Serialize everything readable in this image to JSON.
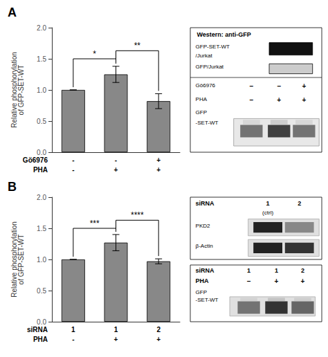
{
  "chart_data": [
    {
      "type": "bar",
      "title": "A",
      "ylabel": "Relative phosphorylation\nof GFP-SET-WT",
      "categories": [
        null,
        null,
        null
      ],
      "values": [
        1.0,
        1.25,
        0.82
      ],
      "errors": [
        0.0,
        0.13,
        0.12
      ],
      "color": "#888888",
      "ylim": [
        0,
        2.0
      ],
      "yticks": [
        {
          "value": 0.0,
          "label": "0.0"
        },
        {
          "value": 0.5,
          "label": "0.5"
        },
        {
          "value": 1.0,
          "label": "1.0"
        },
        {
          "value": 1.5,
          "label": "1.5"
        },
        {
          "value": 2.0,
          "label": "2.0"
        }
      ],
      "grid": false,
      "tick_labels": "y",
      "annotations": {
        "rows": [
          {
            "name": "Gö6976",
            "labels": [
              "-",
              "-",
              "+"
            ]
          },
          {
            "name": "PHA",
            "labels": [
              "-",
              "+",
              "+"
            ]
          }
        ],
        "significance": [
          {
            "between": [
              0,
              1
            ],
            "y": 1.5,
            "label": "*"
          },
          {
            "between": [
              1,
              2
            ],
            "y": 1.63,
            "label": "**"
          }
        ],
        "blots": [
          {
            "texts": [
              "Western: anti-GFP",
              "GFP-SET-WT",
              "/Jurkat",
              "GFP/Jurkat",
              "Gö6976",
              "–",
              "–",
              "+",
              "PHA",
              "–",
              "+",
              "+",
              "GFP",
              "-SET-WT"
            ]
          }
        ]
      }
    },
    {
      "type": "bar",
      "title": "B",
      "ylabel": "Relative phosphorylation\nof GFP-SET-WT",
      "categories": [
        null,
        null,
        null
      ],
      "values": [
        1.0,
        1.27,
        0.97
      ],
      "errors": [
        0.0,
        0.13,
        0.04
      ],
      "color": "#888888",
      "ylim": [
        0,
        2.0
      ],
      "yticks": [
        {
          "value": 0.0,
          "label": "0.0"
        },
        {
          "value": 0.5,
          "label": "0.5"
        },
        {
          "value": 1.0,
          "label": "1.0"
        },
        {
          "value": 1.5,
          "label": "1.5"
        },
        {
          "value": 2.0,
          "label": "2.0"
        }
      ],
      "grid": false,
      "tick_labels": "y",
      "annotations": {
        "rows": [
          {
            "name": "siRNA",
            "labels": [
              "1",
              "1",
              "2"
            ]
          },
          {
            "name": "PHA",
            "labels": [
              "-",
              "+",
              "+"
            ]
          }
        ],
        "significance": [
          {
            "between": [
              0,
              1
            ],
            "y": 1.5,
            "label": "***"
          },
          {
            "between": [
              1,
              2
            ],
            "y": 1.63,
            "label": "****"
          }
        ],
        "blots": [
          {
            "texts": [
              "siRNA",
              "1",
              "2",
              "(ctrl)",
              "PKD2",
              "β-Actin"
            ]
          },
          {
            "texts": [
              "siRNA",
              "1",
              "1",
              "2",
              "PHA",
              "–",
              "+",
              "+",
              "GFP",
              "-SET-WT"
            ]
          }
        ]
      }
    }
  ]
}
